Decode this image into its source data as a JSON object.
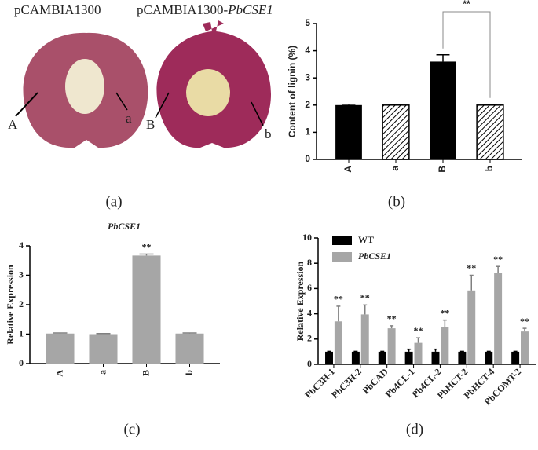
{
  "photo": {
    "left_title": "pCAMBIA1300",
    "right_title_prefix": "pCAMBIA1300-",
    "right_title_gene": "PbCSE1",
    "labels": [
      "A",
      "a",
      "B",
      "b"
    ]
  },
  "panel_labels": [
    "(a)",
    "(b)",
    "(c)",
    "(d)"
  ],
  "chart_data": [
    {
      "type": "bar",
      "ylabel": "Content of lignin (%)",
      "categories": [
        "A",
        "a",
        "B",
        "b"
      ],
      "series": [
        {
          "values": [
            2.0,
            2.0,
            3.6,
            2.0
          ],
          "errors": [
            0.03,
            0.03,
            0.25,
            0.03
          ],
          "colors": [
            "#000000",
            "#ffffff",
            "#000000",
            "#ffffff"
          ],
          "hatch": [
            false,
            true,
            false,
            true
          ]
        }
      ],
      "ylim": [
        0,
        5
      ],
      "yticks": [
        0,
        1,
        2,
        3,
        4,
        5
      ],
      "xtick_rotation": -90,
      "comparisons": [
        {
          "from": 2,
          "to": 3,
          "label": "**"
        }
      ]
    },
    {
      "type": "bar",
      "title": "PbCSE1",
      "title_style": "italic",
      "ylabel": "Relative Expression",
      "categories": [
        "A",
        "a",
        "B",
        "b"
      ],
      "series": [
        {
          "color": "#a6a6a6",
          "values": [
            1.02,
            1.0,
            3.67,
            1.02
          ],
          "errors": [
            0.02,
            0.02,
            0.05,
            0.02
          ],
          "significance": [
            null,
            null,
            "**",
            null
          ]
        }
      ],
      "ylim": [
        0,
        4
      ],
      "yticks": [
        0,
        1,
        2,
        3,
        4
      ],
      "xtick_rotation": -90
    },
    {
      "type": "bar",
      "ylabel": "Relative Expression",
      "categories": [
        "PbC3H-1",
        "PbC3H-2",
        "PbCAD",
        "Pb4CL-1",
        "Pb4CL-2",
        "PbHCT-2",
        "PbHCT-4",
        "PbCOMT-2"
      ],
      "series": [
        {
          "name": "WT",
          "color": "#000000",
          "values": [
            1.0,
            1.0,
            1.0,
            1.0,
            1.0,
            1.0,
            1.0,
            1.0
          ],
          "errors": [
            0.03,
            0.03,
            0.03,
            0.2,
            0.2,
            0.03,
            0.03,
            0.03
          ]
        },
        {
          "name": "PbCSE1",
          "font_style": "italic",
          "color": "#a6a6a6",
          "values": [
            3.4,
            3.95,
            2.85,
            1.7,
            2.95,
            5.85,
            7.25,
            2.6
          ],
          "errors": [
            1.2,
            0.75,
            0.2,
            0.4,
            0.55,
            1.2,
            0.5,
            0.25
          ],
          "significance": [
            "**",
            "**",
            "**",
            "**",
            "**",
            "**",
            "**",
            "**"
          ]
        }
      ],
      "ylim": [
        0,
        10
      ],
      "yticks": [
        0,
        2,
        4,
        6,
        8,
        10
      ],
      "xtick_rotation": -45,
      "legend": "upper left"
    }
  ]
}
